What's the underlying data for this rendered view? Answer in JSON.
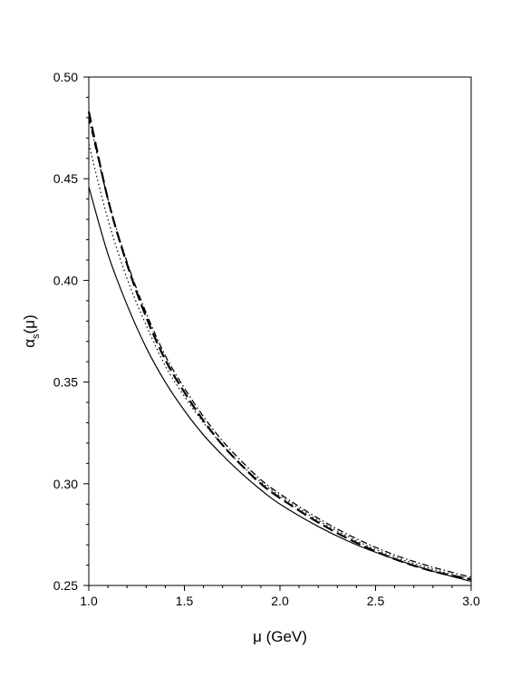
{
  "chart_data": {
    "type": "line",
    "title": "",
    "xlabel": "μ (GeV)",
    "ylabel": {
      "main": "α",
      "sub": "s",
      "tail": "(μ)"
    },
    "xlim": [
      1.0,
      3.0
    ],
    "ylim": [
      0.25,
      0.5
    ],
    "x_ticks": [
      "1.0",
      "1.5",
      "2.0",
      "2.5",
      "3.0"
    ],
    "y_ticks": [
      "0.25",
      "0.30",
      "0.35",
      "0.40",
      "0.45",
      "0.50"
    ],
    "grid": false,
    "legend": "none",
    "x": [
      1.0,
      1.1,
      1.2,
      1.3,
      1.4,
      1.5,
      1.6,
      1.7,
      1.8,
      1.9,
      2.0,
      2.2,
      2.4,
      2.6,
      2.8,
      3.0
    ],
    "series": [
      {
        "style": "solid",
        "values": [
          0.446,
          0.413,
          0.388,
          0.367,
          0.35,
          0.336,
          0.324,
          0.314,
          0.305,
          0.297,
          0.29,
          0.279,
          0.27,
          0.263,
          0.257,
          0.252
        ]
      },
      {
        "style": "dotted",
        "values": [
          0.467,
          0.43,
          0.401,
          0.378,
          0.358,
          0.343,
          0.33,
          0.319,
          0.309,
          0.301,
          0.294,
          0.282,
          0.272,
          0.264,
          0.258,
          0.253
        ]
      },
      {
        "style": "dashed",
        "values": [
          0.483,
          0.44,
          0.408,
          0.382,
          0.361,
          0.345,
          0.331,
          0.319,
          0.309,
          0.3,
          0.293,
          0.281,
          0.271,
          0.263,
          0.257,
          0.253
        ]
      },
      {
        "style": "dash-dot",
        "values": [
          0.48,
          0.44,
          0.409,
          0.384,
          0.363,
          0.347,
          0.333,
          0.321,
          0.311,
          0.302,
          0.295,
          0.283,
          0.273,
          0.265,
          0.259,
          0.254
        ]
      }
    ]
  }
}
